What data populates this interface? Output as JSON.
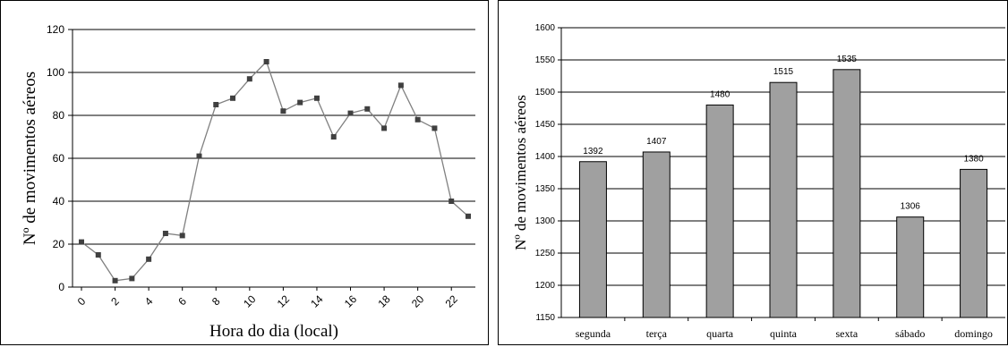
{
  "chart_data": [
    {
      "type": "line",
      "title": "",
      "xlabel": "Hora do dia (local)",
      "ylabel": "Nº de movimentos aéreos",
      "ylim": [
        0,
        120
      ],
      "yticks": [
        0,
        20,
        40,
        60,
        80,
        100,
        120
      ],
      "xticks": [
        0,
        2,
        4,
        6,
        8,
        10,
        12,
        14,
        16,
        18,
        20,
        22
      ],
      "xlim": [
        0,
        23
      ],
      "grid": true,
      "legend": "none",
      "colors": {
        "line": "#808080",
        "marker": "#404040"
      },
      "series": [
        {
          "x": [
            0,
            1,
            2,
            3,
            4,
            5,
            6,
            7,
            8,
            9,
            10,
            11,
            12,
            13,
            14,
            15,
            16,
            17,
            18,
            19,
            20,
            21,
            22,
            23
          ],
          "values": [
            21,
            15,
            3,
            4,
            13,
            25,
            24,
            61,
            85,
            88,
            97,
            105,
            82,
            86,
            88,
            70,
            81,
            83,
            74,
            94,
            78,
            74,
            40,
            33
          ]
        }
      ]
    },
    {
      "type": "bar",
      "title": "",
      "xlabel": "",
      "ylabel": "Nº de movimentos aéreos",
      "ylim": [
        1150,
        1600
      ],
      "yticks": [
        1150,
        1200,
        1250,
        1300,
        1350,
        1400,
        1450,
        1500,
        1550,
        1600
      ],
      "grid": true,
      "legend": "none",
      "colors": {
        "bar": "#a0a0a0",
        "bar_edge": "#000000"
      },
      "categories": [
        "segunda",
        "terça",
        "quarta",
        "quinta",
        "sexta",
        "sábado",
        "domingo"
      ],
      "values": [
        1392,
        1407,
        1480,
        1515,
        1535,
        1306,
        1380
      ],
      "data_labels": [
        "1392",
        "1407",
        "1480",
        "1515",
        "1535",
        "1306",
        "1380"
      ]
    }
  ]
}
